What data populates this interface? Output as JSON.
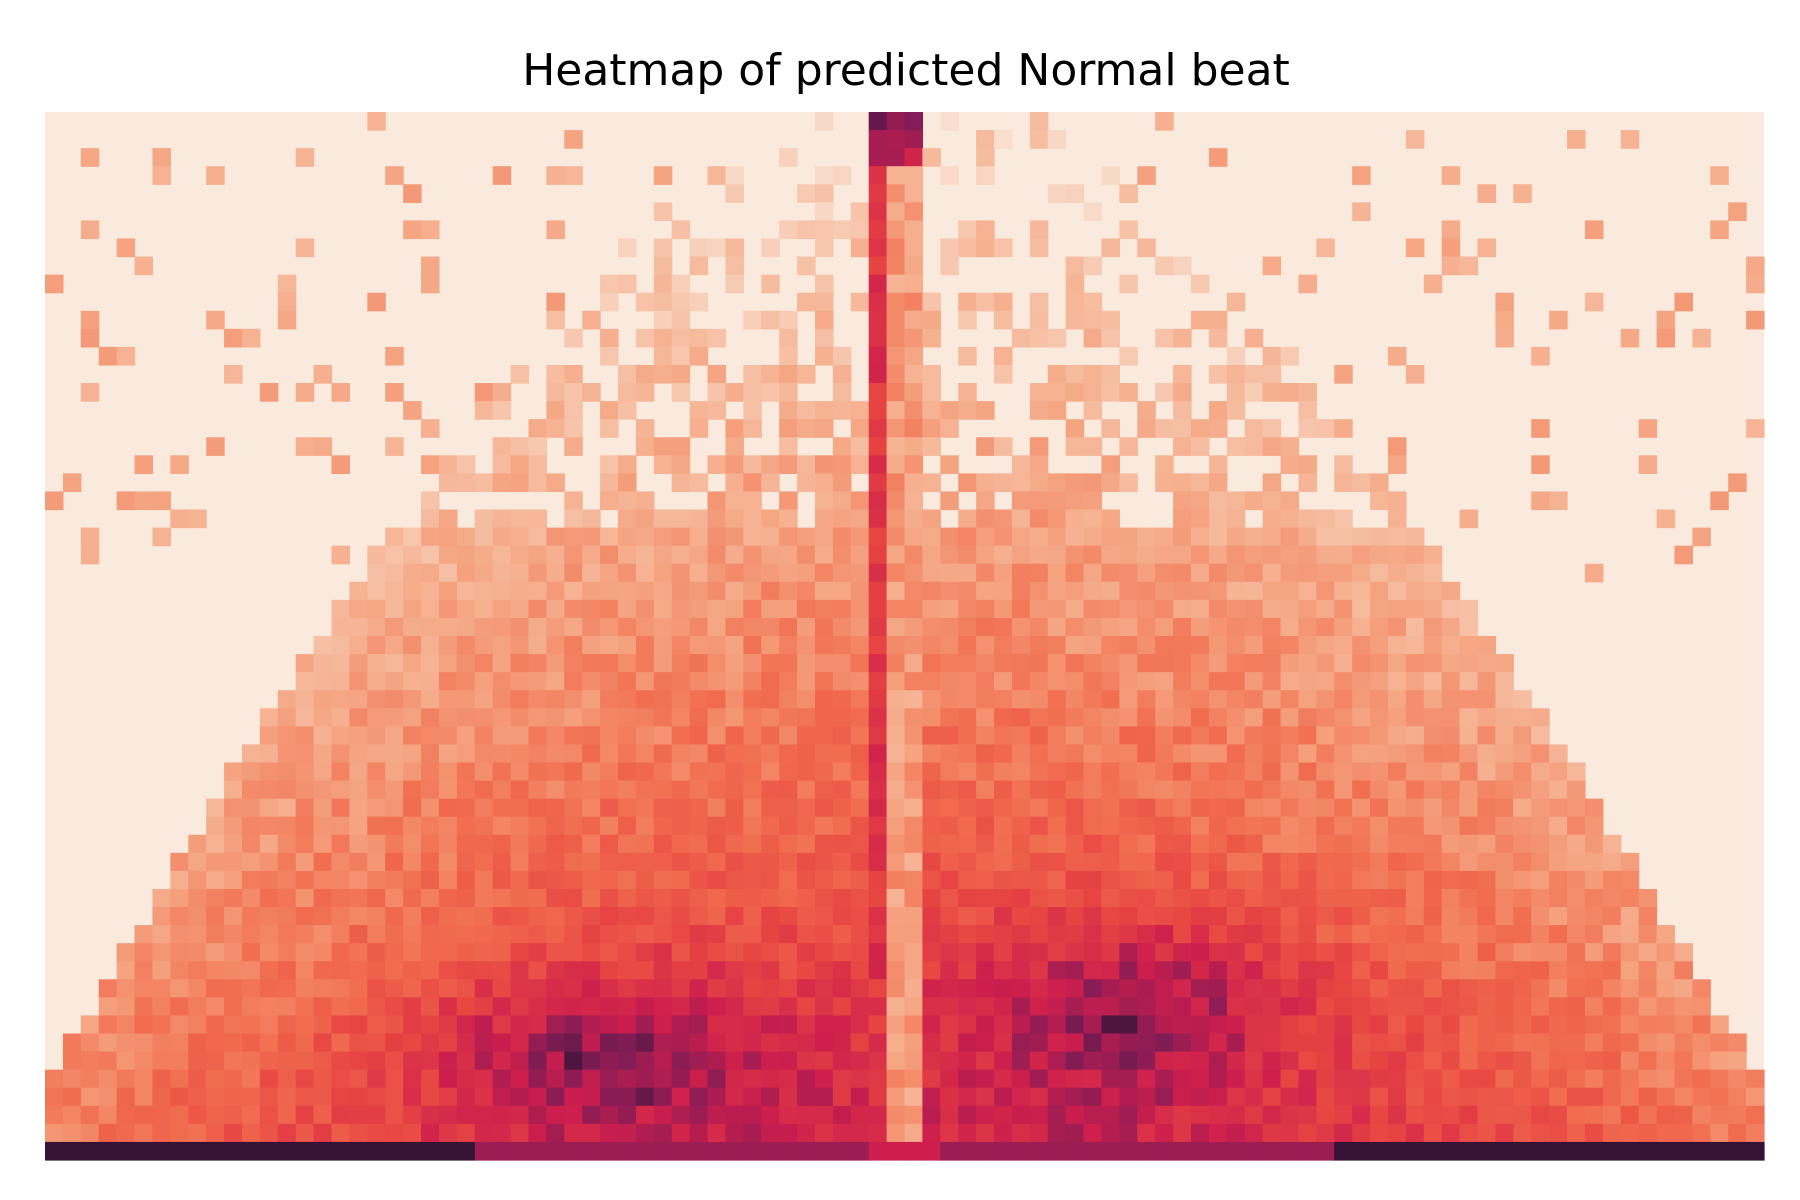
{
  "chart_data": {
    "type": "heatmap",
    "title": "Heatmap of predicted Normal beat",
    "xlabel": "",
    "ylabel": "",
    "axes_visible": false,
    "colorbar": false,
    "colormap": "rocket",
    "grid_columns": 96,
    "grid_rows": 58,
    "value_range": [
      0,
      1
    ],
    "description_of_values": "Relative density of predicted Normal-beat ECG amplitude per time bin; empty cells at 0",
    "features": {
      "center_column_bright_from": 0.483,
      "center_column_bright_to": 0.507,
      "center_column_gap_from": 0.49,
      "center_column_gap_to": 0.506,
      "bottom_row_darkest": true,
      "dense_lower_lobes": true,
      "sparse_upper_region": true
    },
    "colors": {
      "empty": "#faeade",
      "low": "#f5b193",
      "mid": "#ef6548",
      "high": "#cf1f4d",
      "peak": "#6b1c56",
      "baseline": "#0b0b1f"
    }
  }
}
